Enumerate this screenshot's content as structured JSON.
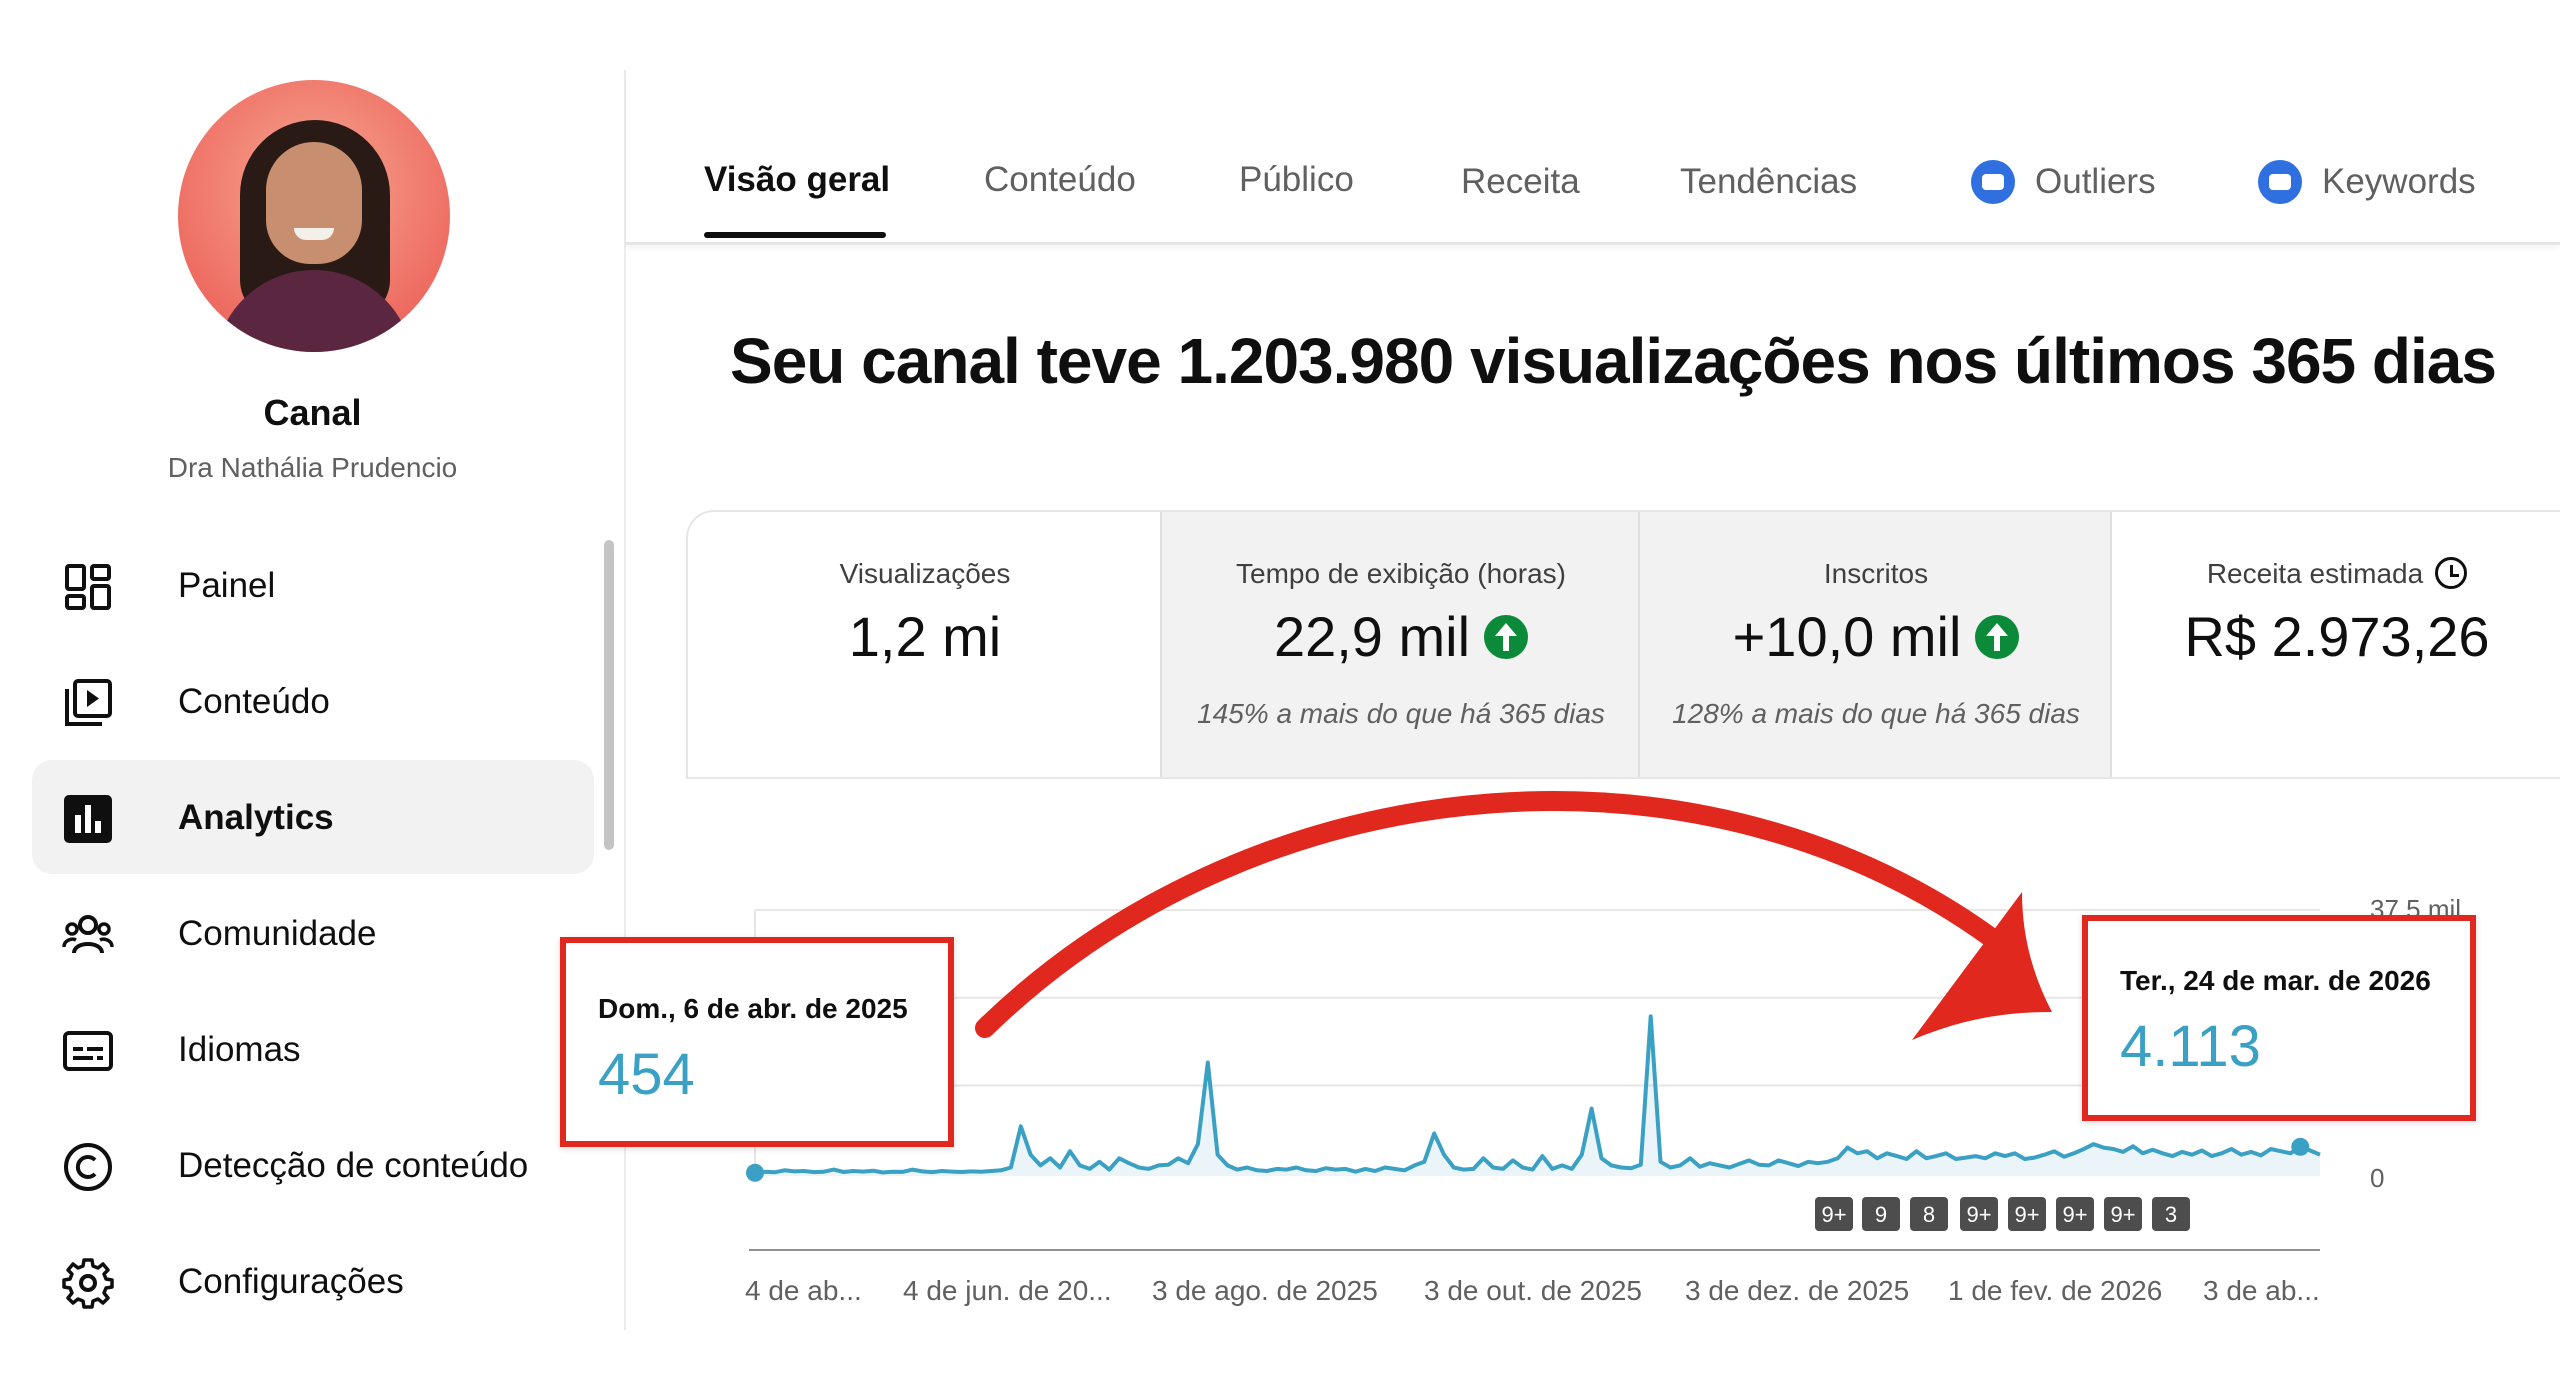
{
  "sidebar": {
    "channel_title": "Canal",
    "channel_name": "Dra Nathália Prudencio",
    "items": [
      {
        "label": "Painel",
        "icon": "dashboard-icon"
      },
      {
        "label": "Conteúdo",
        "icon": "content-icon"
      },
      {
        "label": "Analytics",
        "icon": "analytics-icon",
        "active": true
      },
      {
        "label": "Comunidade",
        "icon": "community-icon"
      },
      {
        "label": "Idiomas",
        "icon": "subtitles-icon"
      },
      {
        "label": "Detecção de conteúdo",
        "icon": "copyright-icon"
      },
      {
        "label": "Configurações",
        "icon": "gear-icon"
      }
    ]
  },
  "tabs": [
    {
      "label": "Visão geral",
      "active": true
    },
    {
      "label": "Conteúdo"
    },
    {
      "label": "Público"
    },
    {
      "label": "Receita"
    },
    {
      "label": "Tendências"
    },
    {
      "label": "Outliers",
      "icon": "extension-icon"
    },
    {
      "label": "Keywords",
      "icon": "extension-icon"
    }
  ],
  "headline": "Seu canal teve 1.203.980 visualizações nos últimos 365 dias",
  "metrics": [
    {
      "label": "Visualizações",
      "value": "1,2 mi",
      "note": ""
    },
    {
      "label": "Tempo de exibição (horas)",
      "value": "22,9 mil",
      "note": "145% a mais do que há 365 dias",
      "trend": "up"
    },
    {
      "label": "Inscritos",
      "value": "+10,0 mil",
      "note": "128% a mais do que há 365 dias",
      "trend": "up"
    },
    {
      "label": "Receita estimada",
      "value": "R$ 2.973,26",
      "note": "",
      "icon": "clock-icon"
    }
  ],
  "colors": {
    "accent_line": "#3aa0c4",
    "highlight_red": "#e0281f",
    "trend_up": "#0b8a3a",
    "extension_blue": "#2f6fe0"
  },
  "callouts": {
    "start": {
      "date": "Dom., 6 de abr. de 2025",
      "value": "454"
    },
    "end": {
      "date": "Ter., 24 de mar. de 2026",
      "value": "4.113"
    }
  },
  "chart_data": {
    "type": "area",
    "series": [
      {
        "values": [
          454,
          600,
          520,
          800,
          650,
          700,
          550,
          600,
          900,
          560,
          700,
          620,
          750,
          500,
          600,
          580,
          900,
          650,
          550,
          700,
          620,
          560,
          650,
          600,
          700,
          800,
          1200,
          7000,
          3000,
          1500,
          2500,
          1200,
          3500,
          1500,
          1000,
          2000,
          900,
          2500,
          1800,
          1200,
          1000,
          1500,
          1600,
          2500,
          1800,
          4500,
          16000,
          3000,
          1500,
          900,
          1200,
          800,
          700,
          1000,
          900,
          1200,
          800,
          700,
          1100,
          900,
          1000,
          600,
          1000,
          700,
          1200,
          1000,
          800,
          1500,
          2000,
          6000,
          3000,
          1200,
          900,
          1000,
          2500,
          1200,
          1000,
          2200,
          1200,
          900,
          2800,
          1000,
          1500,
          1000,
          3000,
          9500,
          2500,
          1500,
          1200,
          1100,
          1600,
          22500,
          2000,
          1200,
          1500,
          2500,
          1300,
          1800,
          1500,
          1200,
          1700,
          2200,
          1600,
          1500,
          2200,
          1800,
          1400,
          2000,
          1800,
          2000,
          2500,
          4000,
          3200,
          3500,
          2500,
          3200,
          2800,
          2400,
          3500,
          2500,
          2800,
          3200,
          2400,
          2600,
          2800,
          2500,
          3200,
          2800,
          3200,
          2400,
          2600,
          3000,
          3500,
          2700,
          3200,
          3800,
          4500,
          4000,
          3800,
          3400,
          4200,
          3200,
          3700,
          3200,
          2800,
          3400,
          3000,
          3600,
          2800,
          3200,
          3800,
          3000,
          3400,
          2900,
          3800,
          3500,
          3200,
          4113,
          3600,
          3000
        ]
      }
    ],
    "x_tick_labels": [
      "4 de ab...",
      "4 de jun. de 20...",
      "3 de ago. de 2025",
      "3 de out. de 2025",
      "3 de dez. de 2025",
      "1 de fev. de 2026",
      "3 de ab..."
    ],
    "y_tick_labels": [
      "37,5 mil",
      "0"
    ],
    "ylim": [
      0,
      37500
    ],
    "markers": [
      "9+",
      "9",
      "8",
      "9+",
      "9+",
      "9+",
      "9+",
      "3"
    ],
    "grid": true
  }
}
